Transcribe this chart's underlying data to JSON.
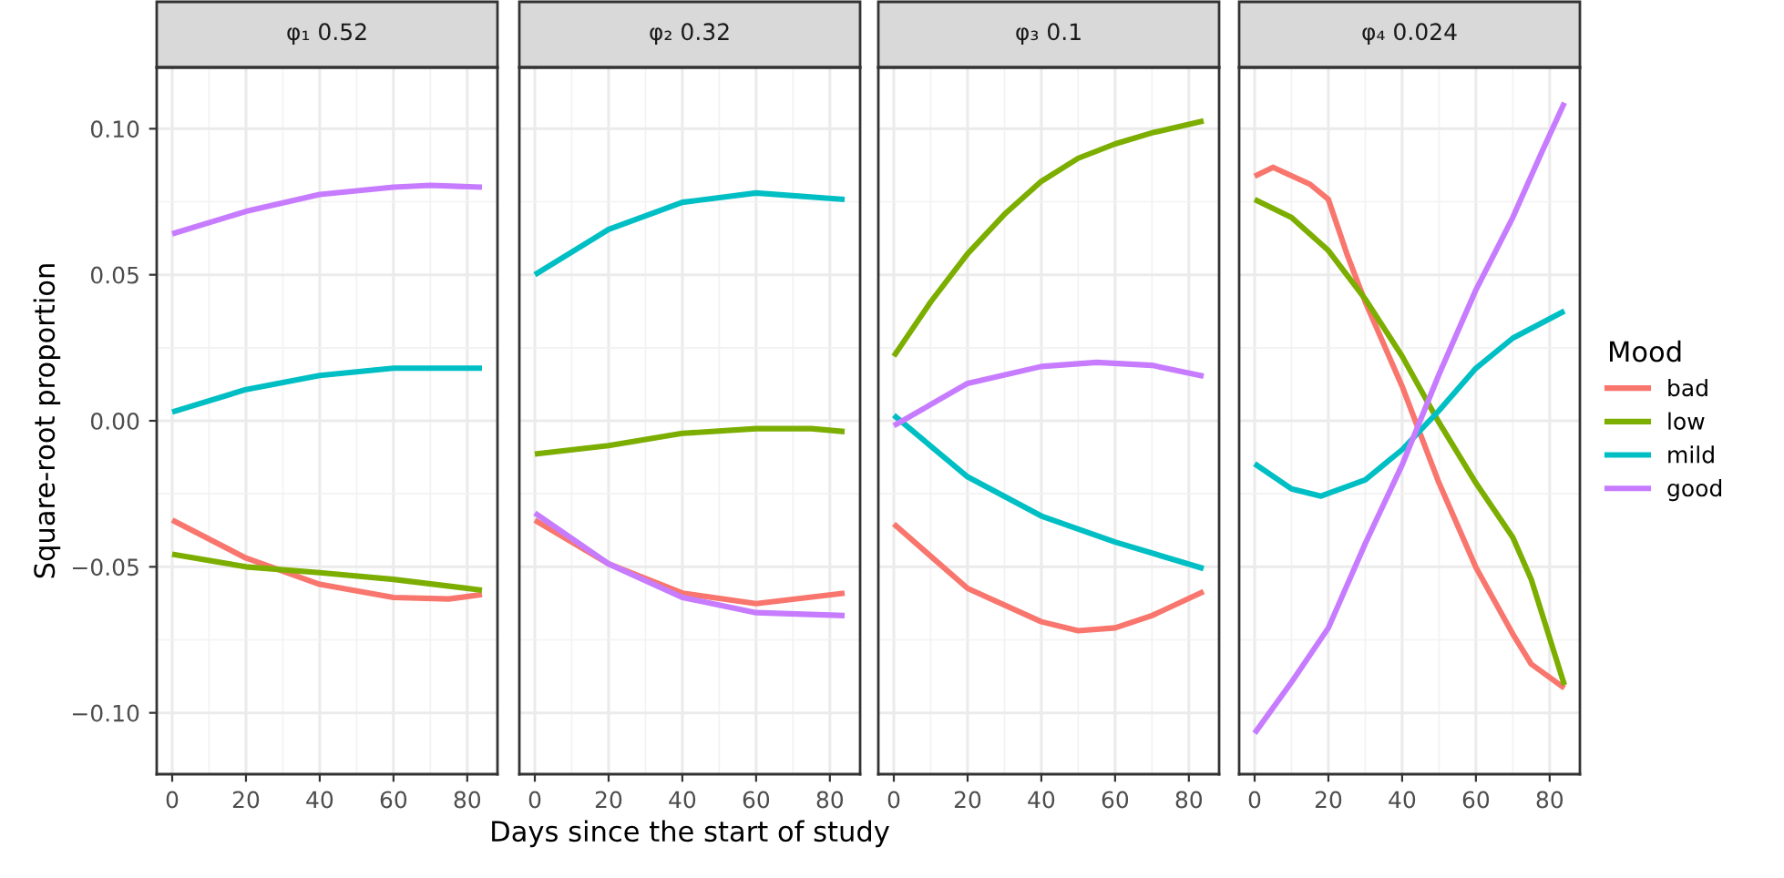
{
  "chart_data": [
    {
      "type": "line",
      "title": "φ₁ 0.52",
      "ylabel": "Square-root proportion",
      "xlim": [
        -4.2,
        88.2
      ],
      "ylim": [
        -0.121,
        0.121
      ],
      "xticks": [
        0,
        20,
        40,
        60,
        80
      ],
      "yticks": [
        {
          "value": 0.1,
          "label": "0.10"
        },
        {
          "value": 0.05,
          "label": "0.05"
        },
        {
          "value": 0,
          "label": "0.00"
        },
        {
          "value": -0.05,
          "label": "−0.05"
        },
        {
          "value": -0.1,
          "label": "−0.10"
        }
      ],
      "grid": true,
      "series": [
        {
          "color": "#f8766d",
          "x": [
            0,
            20,
            40,
            60,
            75,
            84
          ],
          "values": [
            -0.034,
            -0.047,
            -0.056,
            -0.0605,
            -0.061,
            -0.0595
          ]
        },
        {
          "color": "#7cae00",
          "x": [
            0,
            20,
            40,
            60,
            84
          ],
          "values": [
            -0.0457,
            -0.05,
            -0.052,
            -0.0543,
            -0.058
          ]
        },
        {
          "color": "#00bfc4",
          "x": [
            0,
            20,
            40,
            60,
            84
          ],
          "values": [
            0.003,
            0.0107,
            0.0155,
            0.018,
            0.018
          ]
        },
        {
          "color": "#c77cff",
          "x": [
            0,
            20,
            40,
            60,
            70,
            84
          ],
          "values": [
            0.064,
            0.0717,
            0.0775,
            0.08,
            0.0806,
            0.08
          ]
        }
      ]
    },
    {
      "type": "line",
      "title": "φ₂ 0.32",
      "xlabel": "Days since the start of study",
      "xlim": [
        -4.2,
        88.2
      ],
      "ylim": [
        -0.121,
        0.121
      ],
      "xticks": [
        0,
        20,
        40,
        60,
        80
      ],
      "yticks": [
        0.1,
        0.05,
        0,
        -0.05,
        -0.1
      ],
      "tick_labels": "x",
      "grid": true,
      "series": [
        {
          "color": "#f8766d",
          "x": [
            0,
            20,
            40,
            60,
            84
          ],
          "values": [
            -0.034,
            -0.049,
            -0.059,
            -0.0626,
            -0.059
          ]
        },
        {
          "color": "#7cae00",
          "x": [
            0,
            20,
            40,
            60,
            75,
            84
          ],
          "values": [
            -0.0114,
            -0.0085,
            -0.0043,
            -0.0027,
            -0.0027,
            -0.0037
          ]
        },
        {
          "color": "#00bfc4",
          "x": [
            0,
            20,
            40,
            60,
            84
          ],
          "values": [
            0.05,
            0.0655,
            0.0748,
            0.078,
            0.0758
          ]
        },
        {
          "color": "#c77cff",
          "x": [
            0,
            20,
            40,
            60,
            84
          ],
          "values": [
            -0.0316,
            -0.049,
            -0.0605,
            -0.0657,
            -0.0667
          ]
        }
      ]
    },
    {
      "type": "line",
      "title": "φ₃ 0.1",
      "xlim": [
        -4.2,
        88.2
      ],
      "ylim": [
        -0.121,
        0.121
      ],
      "xticks": [
        0,
        20,
        40,
        60,
        80
      ],
      "yticks": [
        0.1,
        0.05,
        0,
        -0.05,
        -0.1
      ],
      "tick_labels": "x",
      "grid": true,
      "series": [
        {
          "color": "#f8766d",
          "x": [
            0,
            20,
            40,
            50,
            60,
            70,
            84
          ],
          "values": [
            -0.0353,
            -0.0574,
            -0.0688,
            -0.0719,
            -0.0709,
            -0.0667,
            -0.0585
          ]
        },
        {
          "color": "#7cae00",
          "x": [
            0,
            10,
            20,
            30,
            40,
            50,
            60,
            70,
            84
          ],
          "values": [
            0.0221,
            0.0407,
            0.0572,
            0.0707,
            0.082,
            0.0899,
            0.0948,
            0.0986,
            0.1027
          ]
        },
        {
          "color": "#00bfc4",
          "x": [
            0,
            20,
            40,
            60,
            84
          ],
          "values": [
            0.0019,
            -0.0192,
            -0.0326,
            -0.0415,
            -0.0506
          ]
        },
        {
          "color": "#c77cff",
          "x": [
            0,
            20,
            40,
            55,
            70,
            84
          ],
          "values": [
            -0.0017,
            0.0128,
            0.0186,
            0.02,
            0.019,
            0.0153
          ]
        }
      ]
    },
    {
      "type": "line",
      "title": "φ₄ 0.024",
      "xlim": [
        -4.2,
        88.2
      ],
      "ylim": [
        -0.121,
        0.121
      ],
      "xticks": [
        0,
        20,
        40,
        60,
        80
      ],
      "yticks": [
        0.1,
        0.05,
        0,
        -0.05,
        -0.1
      ],
      "tick_labels": "x",
      "grid": true,
      "legend": "right",
      "legend_title": "Mood",
      "series": [
        {
          "name": "bad",
          "color": "#f8766d",
          "x": [
            0,
            5,
            15,
            20,
            25,
            30,
            40,
            45,
            50,
            60,
            70,
            75,
            84
          ],
          "values": [
            0.0837,
            0.0868,
            0.081,
            0.0758,
            0.0572,
            0.0407,
            0.0118,
            -0.0048,
            -0.0213,
            -0.0502,
            -0.073,
            -0.0833,
            -0.0915
          ]
        },
        {
          "name": "low",
          "color": "#7cae00",
          "x": [
            0,
            10,
            20,
            30,
            40,
            50,
            60,
            70,
            75,
            84
          ],
          "values": [
            0.0758,
            0.0696,
            0.0583,
            0.0417,
            0.0221,
            -0.0006,
            -0.0213,
            -0.0399,
            -0.0543,
            -0.0905
          ]
        },
        {
          "name": "mild",
          "color": "#00bfc4",
          "x": [
            0,
            10,
            18,
            30,
            40,
            50,
            60,
            70,
            84
          ],
          "values": [
            -0.0147,
            -0.0233,
            -0.0258,
            -0.0202,
            -0.0099,
            0.0035,
            0.018,
            0.0283,
            0.0376
          ]
        },
        {
          "name": "good",
          "color": "#c77cff",
          "x": [
            0,
            10,
            20,
            30,
            40,
            50,
            60,
            70,
            78,
            84
          ],
          "values": [
            -0.107,
            -0.0895,
            -0.0709,
            -0.042,
            -0.0151,
            0.0159,
            0.0448,
            0.0696,
            0.0924,
            0.1089
          ]
        }
      ]
    }
  ]
}
